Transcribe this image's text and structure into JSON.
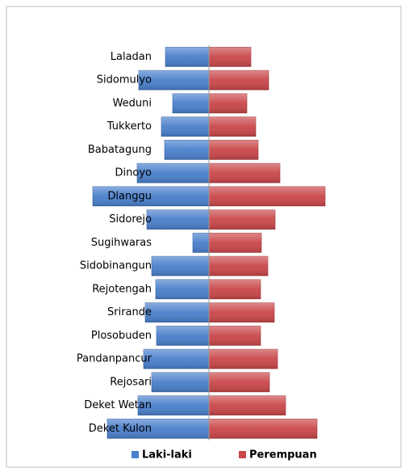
{
  "chart_data": {
    "type": "pyramid",
    "categories": [
      "Laladan",
      "Sidomulyo",
      "Weduni",
      "Tukkerto",
      "Babatagung",
      "Dinoyo",
      "Dlanggu",
      "Sidorejo",
      "Sugihwaras",
      "Sidobinangun",
      "Rejotengah",
      "Srirande",
      "Plosobuden",
      "Pandanpancur",
      "Rejosari",
      "Deket Wetan",
      "Deket Kulon"
    ],
    "series": [
      {
        "name": "Laki-laki",
        "color": "#4a7fcb",
        "values": [
          54,
          87,
          45,
          59,
          55,
          89,
          144,
          77,
          20,
          71,
          66,
          79,
          65,
          81,
          71,
          88,
          126
        ]
      },
      {
        "name": "Perempuan",
        "color": "#c9474a",
        "values": [
          52,
          74,
          47,
          58,
          61,
          88,
          144,
          82,
          65,
          73,
          64,
          81,
          64,
          85,
          75,
          95,
          134
        ]
      }
    ],
    "xlim": [
      0,
      150
    ],
    "legend": "bottom"
  }
}
